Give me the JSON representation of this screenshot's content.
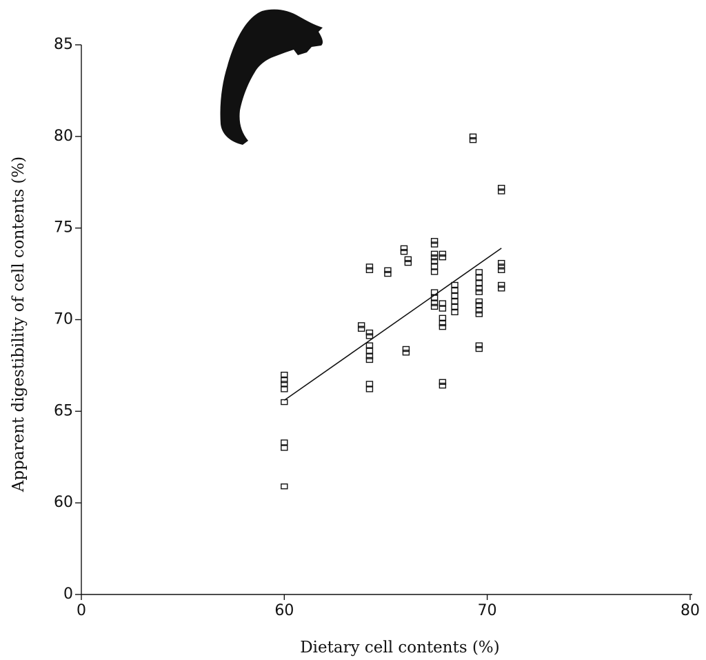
{
  "chart_data": {
    "type": "scatter",
    "x_label": "Dietary cell contents (%)",
    "y_label": "Apparent digestibility of cell contents (%)",
    "xlim": [
      0,
      80
    ],
    "ylim": [
      0,
      85
    ],
    "xticks": [
      0,
      60,
      70,
      80
    ],
    "yticks": [
      0,
      60,
      65,
      70,
      75,
      80,
      85
    ],
    "x": [
      60,
      60,
      60,
      60,
      60,
      60,
      60,
      60,
      63.8,
      63.8,
      64.2,
      64.2,
      64.2,
      64.2,
      64.2,
      64.2,
      64.2,
      64.2,
      64.2,
      64.2,
      65.1,
      65.1,
      65.9,
      65.9,
      66.0,
      66.0,
      66.1,
      66.1,
      67.4,
      67.4,
      67.4,
      67.4,
      67.4,
      67.4,
      67.4,
      67.4,
      67.4,
      67.4,
      67.4,
      67.8,
      67.8,
      67.8,
      67.8,
      67.8,
      67.8,
      67.8,
      67.8,
      67.8,
      68.4,
      68.4,
      68.4,
      68.4,
      68.4,
      68.4,
      69.3,
      69.3,
      69.6,
      69.6,
      69.6,
      69.6,
      69.6,
      69.6,
      69.6,
      69.6,
      69.6,
      69.6,
      69.6,
      70.7,
      70.7,
      70.7,
      70.7,
      70.7,
      70.7,
      70.7
    ],
    "y": [
      67.0,
      66.7,
      66.5,
      66.2,
      65.5,
      63.3,
      63.0,
      60.9,
      69.7,
      69.5,
      72.9,
      72.7,
      69.3,
      69.1,
      68.6,
      68.3,
      68.0,
      67.8,
      66.5,
      66.2,
      72.7,
      72.5,
      73.9,
      73.7,
      68.4,
      68.2,
      73.3,
      73.1,
      74.3,
      74.1,
      73.6,
      73.4,
      73.2,
      72.9,
      72.6,
      71.5,
      71.2,
      70.9,
      70.7,
      73.6,
      73.4,
      70.9,
      70.6,
      70.1,
      69.8,
      69.6,
      66.6,
      66.4,
      71.9,
      71.6,
      71.3,
      71.0,
      70.7,
      70.4,
      80.0,
      79.8,
      72.6,
      72.3,
      72.0,
      71.7,
      71.5,
      71.0,
      70.8,
      70.5,
      70.3,
      68.6,
      68.4,
      77.2,
      77.0,
      73.1,
      72.9,
      72.7,
      71.9,
      71.7
    ],
    "trendline": {
      "x": [
        60,
        70.7
      ],
      "y": [
        65.6,
        73.9
      ]
    },
    "color": "#111111"
  }
}
